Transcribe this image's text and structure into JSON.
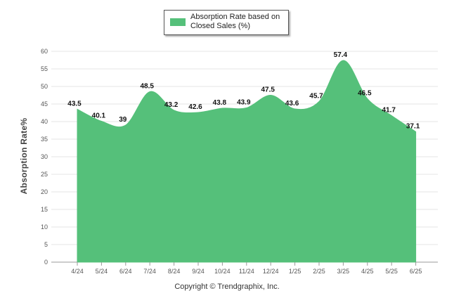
{
  "chart_data": {
    "type": "area",
    "categories": [
      "4/24",
      "5/24",
      "6/24",
      "7/24",
      "8/24",
      "9/24",
      "10/24",
      "11/24",
      "12/24",
      "1/25",
      "2/25",
      "3/25",
      "4/25",
      "5/25",
      "6/25"
    ],
    "series": [
      {
        "name": "Absorption Rate based on Closed Sales (%)",
        "values": [
          43.5,
          40.1,
          39,
          48.5,
          43.2,
          42.6,
          43.8,
          43.9,
          47.5,
          43.6,
          45.7,
          57.4,
          46.5,
          41.7,
          37.1
        ],
        "color": "#55c07a"
      }
    ],
    "ylabel": "Absorption Rate%",
    "ylim": [
      0,
      60
    ],
    "yticks": [
      0,
      5,
      10,
      15,
      20,
      25,
      30,
      35,
      40,
      45,
      50,
      55,
      60
    ],
    "grid": true,
    "legend_position": "top-center"
  },
  "copyright": "Copyright © Trendgraphix, Inc."
}
